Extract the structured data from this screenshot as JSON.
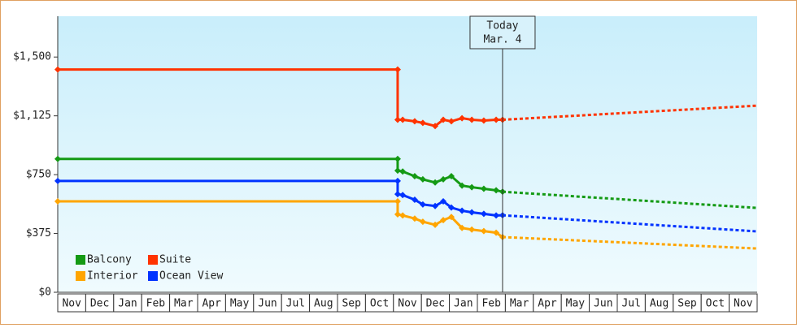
{
  "chart_data": {
    "type": "line",
    "categories": [
      "Nov",
      "Dec",
      "Jan",
      "Feb",
      "Mar",
      "Apr",
      "May",
      "Jun",
      "Jul",
      "Aug",
      "Sep",
      "Oct",
      "Nov",
      "Dec",
      "Jan",
      "Feb",
      "Mar",
      "Apr",
      "May",
      "Jun",
      "Jul",
      "Aug",
      "Sep",
      "Oct",
      "Nov"
    ],
    "xlim": [
      0,
      25
    ],
    "ylim": [
      0,
      1760
    ],
    "yticks": [
      {
        "value": 0,
        "label": "$0"
      },
      {
        "value": 375,
        "label": "$375"
      },
      {
        "value": 750,
        "label": "$750"
      },
      {
        "value": 1125,
        "label": "$1,125"
      },
      {
        "value": 1500,
        "label": "$1,500"
      }
    ],
    "today": {
      "x": 15.9,
      "label": "Today",
      "date": "Mar. 4"
    },
    "series": [
      {
        "name": "Balcony",
        "color": "#149a14",
        "x": [
          0,
          12.15,
          12.15,
          12.33,
          12.76,
          13.05,
          13.49,
          13.78,
          14.07,
          14.45,
          14.8,
          15.23,
          15.67,
          15.9
        ],
        "values": [
          850,
          850,
          776,
          770,
          740,
          720,
          700,
          720,
          740,
          680,
          670,
          660,
          650,
          641
        ],
        "forecast_x": [
          15.9,
          25
        ],
        "forecast_values": [
          641,
          538
        ]
      },
      {
        "name": "Suite",
        "color": "#ff3300",
        "x": [
          0,
          12.15,
          12.15,
          12.33,
          12.76,
          13.05,
          13.49,
          13.78,
          14.07,
          14.45,
          14.8,
          15.23,
          15.67,
          15.9
        ],
        "values": [
          1420,
          1420,
          1100,
          1100,
          1090,
          1080,
          1060,
          1100,
          1090,
          1110,
          1100,
          1095,
          1100,
          1100
        ],
        "forecast_x": [
          15.9,
          25
        ],
        "forecast_values": [
          1100,
          1190
        ]
      },
      {
        "name": "Interior",
        "color": "#ffa500",
        "x": [
          0,
          12.15,
          12.15,
          12.33,
          12.76,
          13.05,
          13.49,
          13.78,
          14.07,
          14.45,
          14.8,
          15.23,
          15.67,
          15.9
        ],
        "values": [
          580,
          580,
          497,
          490,
          470,
          450,
          430,
          460,
          480,
          410,
          400,
          390,
          380,
          352
        ],
        "forecast_x": [
          15.9,
          25
        ],
        "forecast_values": [
          352,
          279
        ]
      },
      {
        "name": "Ocean View",
        "color": "#0033ff",
        "x": [
          0,
          12.15,
          12.15,
          12.33,
          12.76,
          13.05,
          13.49,
          13.78,
          14.07,
          14.45,
          14.8,
          15.23,
          15.67,
          15.9
        ],
        "values": [
          710,
          710,
          626,
          620,
          590,
          560,
          550,
          580,
          540,
          520,
          510,
          500,
          490,
          491
        ],
        "forecast_x": [
          15.9,
          25
        ],
        "forecast_values": [
          491,
          388
        ]
      }
    ]
  }
}
